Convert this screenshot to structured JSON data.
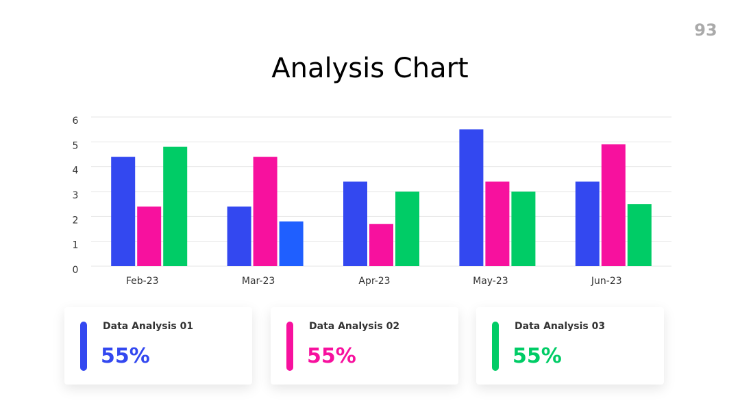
{
  "page_number": "93",
  "chart_data": {
    "type": "bar",
    "title": "Analysis Chart",
    "categories": [
      "Feb-23",
      "Mar-23",
      "Apr-23",
      "May-23",
      "Jun-23"
    ],
    "series": [
      {
        "color": "#3348f0",
        "values": [
          4.4,
          2.4,
          3.4,
          5.5,
          3.4
        ]
      },
      {
        "color": "#f7119e",
        "values": [
          2.4,
          4.4,
          1.7,
          3.4,
          4.9
        ]
      },
      {
        "color": "#00cc66",
        "point_colors": [
          "#00cc66",
          "#1f5fff",
          "#00cc66",
          "#00cc66",
          "#00cc66"
        ],
        "values": [
          4.8,
          1.8,
          3.0,
          3.0,
          2.5
        ]
      }
    ],
    "ylim": [
      0,
      6
    ],
    "yticks": [
      0,
      1,
      2,
      3,
      4,
      5,
      6
    ],
    "grid": true
  },
  "cards": [
    {
      "title": "Data Analysis 01",
      "value": "55%",
      "color": "#3348f0"
    },
    {
      "title": "Data Analysis 02",
      "value": "55%",
      "color": "#f7119e"
    },
    {
      "title": "Data Analysis 03",
      "value": "55%",
      "color": "#00cc66"
    }
  ]
}
